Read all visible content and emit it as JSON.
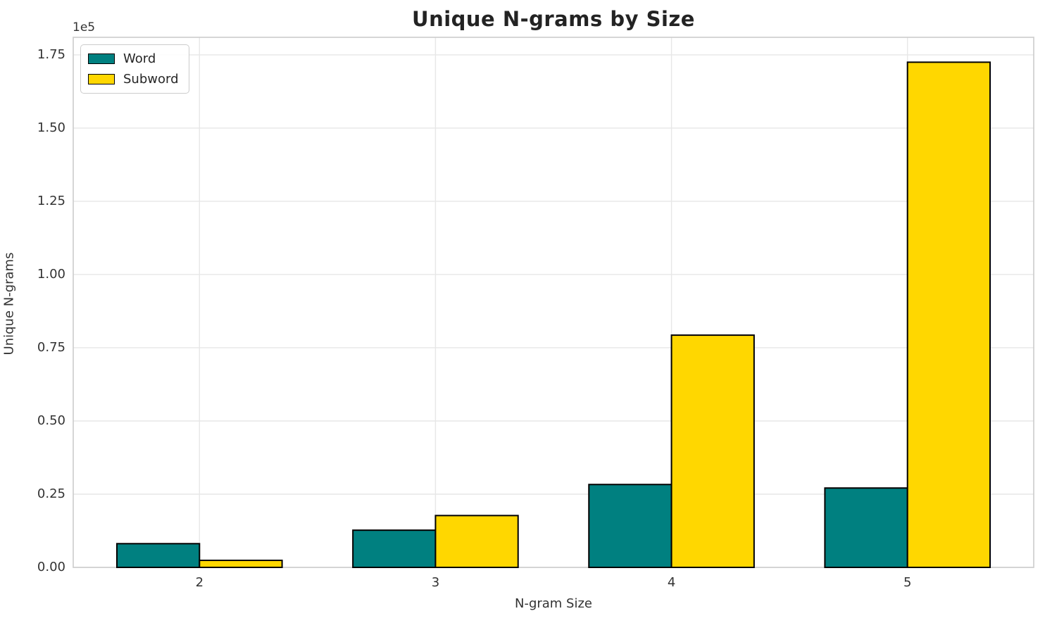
{
  "chart_data": {
    "type": "bar",
    "title": "Unique N-grams by Size",
    "xlabel": "N-gram Size",
    "ylabel": "Unique N-grams",
    "y_offset_label": "1e5",
    "categories": [
      "2",
      "3",
      "4",
      "5"
    ],
    "series": [
      {
        "name": "Word",
        "color": "#008080",
        "values": [
          8100,
          12700,
          28300,
          27100
        ]
      },
      {
        "name": "Subword",
        "color": "#FFD700",
        "values": [
          2400,
          17700,
          79300,
          172500
        ]
      }
    ],
    "bar_edge_color": "#000000",
    "y_ticks": [
      {
        "label": "0.00",
        "value": 0
      },
      {
        "label": "0.25",
        "value": 25000
      },
      {
        "label": "0.50",
        "value": 50000
      },
      {
        "label": "0.75",
        "value": 75000
      },
      {
        "label": "1.00",
        "value": 100000
      },
      {
        "label": "1.25",
        "value": 125000
      },
      {
        "label": "1.50",
        "value": 150000
      },
      {
        "label": "1.75",
        "value": 175000
      }
    ],
    "ylim": [
      0,
      181000
    ],
    "grid": "on",
    "grid_color": "#e7e7e7",
    "axes_border_color": "#cccccc",
    "text_color": "#333333",
    "background": "#ffffff",
    "legend_position": "upper-left"
  }
}
